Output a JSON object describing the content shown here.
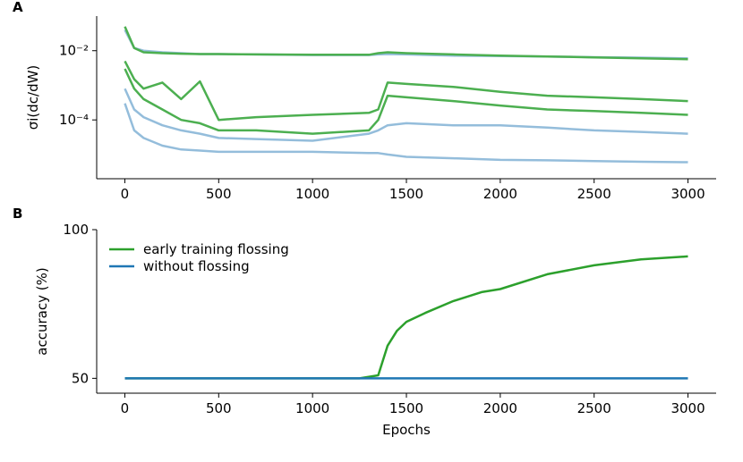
{
  "chart_data": [
    {
      "type": "line",
      "panel_label": "A",
      "ylabel": "σi(dc/dW)",
      "yscale": "log",
      "x": [
        0,
        50,
        100,
        200,
        300,
        400,
        500,
        700,
        1000,
        1300,
        1350,
        1400,
        1500,
        1750,
        2000,
        2250,
        2500,
        2750,
        3000
      ],
      "xlim": [
        -150,
        3150
      ],
      "xticks": [
        0,
        500,
        1000,
        1500,
        2000,
        2500,
        3000
      ],
      "ylim": [
        2e-06,
        0.1
      ],
      "yticks": [
        {
          "value": 0.01,
          "label": "10⁻²"
        },
        {
          "value": 0.0001,
          "label": "10⁻⁴"
        }
      ],
      "series": [
        {
          "color": "#94bddb",
          "values": [
            0.04,
            0.012,
            0.01,
            0.009,
            0.0085,
            0.008,
            0.008,
            0.0078,
            0.0075,
            0.0075,
            0.0078,
            0.008,
            0.0078,
            0.0072,
            0.007,
            0.0068,
            0.0065,
            0.0063,
            0.006
          ]
        },
        {
          "color": "#94bddb",
          "values": [
            0.0008,
            0.0002,
            0.00012,
            7e-05,
            5e-05,
            4e-05,
            3e-05,
            2.8e-05,
            2.5e-05,
            4e-05,
            5e-05,
            7e-05,
            8e-05,
            7e-05,
            7e-05,
            6e-05,
            5e-05,
            4.5e-05,
            4e-05
          ]
        },
        {
          "color": "#94bddb",
          "values": [
            0.0003,
            5e-05,
            3e-05,
            1.8e-05,
            1.4e-05,
            1.3e-05,
            1.2e-05,
            1.2e-05,
            1.2e-05,
            1.1e-05,
            1.1e-05,
            1e-05,
            8.6e-06,
            7.8e-06,
            7e-06,
            6.8e-06,
            6.5e-06,
            6.2e-06,
            6e-06
          ]
        },
        {
          "color": "#4caf50",
          "values": [
            0.05,
            0.012,
            0.009,
            0.0085,
            0.0082,
            0.008,
            0.008,
            0.0078,
            0.0076,
            0.0076,
            0.0085,
            0.009,
            0.0085,
            0.0078,
            0.0072,
            0.0068,
            0.0064,
            0.006,
            0.0057
          ]
        },
        {
          "color": "#4caf50",
          "values": [
            0.005,
            0.0015,
            0.0008,
            0.0012,
            0.0004,
            0.0013,
            0.0001,
            0.00012,
            0.00014,
            0.00016,
            0.0002,
            0.0012,
            0.0011,
            0.0009,
            0.00065,
            0.0005,
            0.00045,
            0.0004,
            0.00035
          ]
        },
        {
          "color": "#4caf50",
          "values": [
            0.003,
            0.0008,
            0.0004,
            0.0002,
            0.0001,
            8e-05,
            5e-05,
            5e-05,
            4e-05,
            5e-05,
            0.0001,
            0.0005,
            0.00045,
            0.00035,
            0.00026,
            0.0002,
            0.00018,
            0.00016,
            0.00014
          ]
        }
      ]
    },
    {
      "type": "line",
      "panel_label": "B",
      "xlabel": "Epochs",
      "ylabel": "accuracy (%)",
      "legend": "upper left",
      "x": [
        0,
        250,
        500,
        750,
        1000,
        1250,
        1350,
        1400,
        1450,
        1500,
        1600,
        1750,
        1900,
        2000,
        2250,
        2500,
        2750,
        3000
      ],
      "xlim": [
        -150,
        3150
      ],
      "xticks": [
        0,
        500,
        1000,
        1500,
        2000,
        2500,
        3000
      ],
      "ylim": [
        45,
        100
      ],
      "yticks": [
        50,
        100
      ],
      "series": [
        {
          "name": "early training flossing",
          "color": "#2ca02c",
          "values": [
            50,
            50,
            50,
            50,
            50,
            50,
            51,
            61,
            66,
            69,
            72,
            76,
            79,
            80,
            85,
            88,
            90,
            91
          ]
        },
        {
          "name": "without flossing",
          "color": "#1f77b4",
          "values": [
            50,
            50,
            50,
            50,
            50,
            50,
            50,
            50,
            50,
            50,
            50,
            50,
            50,
            50,
            50,
            50,
            50,
            50
          ]
        }
      ]
    }
  ]
}
